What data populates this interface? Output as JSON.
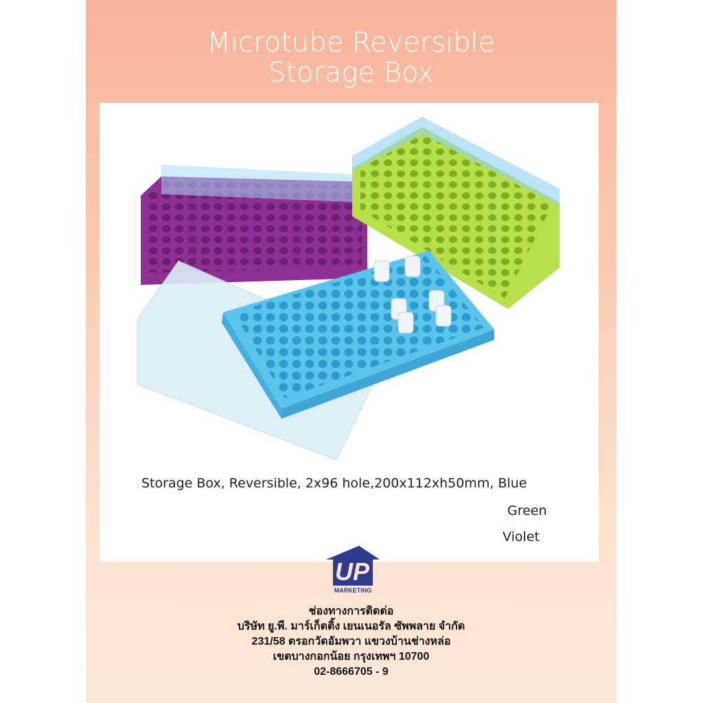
{
  "title_line1": "Microtube Reversible",
  "title_line2": "Storage Box",
  "product": {
    "description": "Storage Box, Reversible, 2x96 hole,200x112xh50mm, Blue",
    "color_green": "Green",
    "color_violet": "Violet",
    "colors": {
      "blue": "#5bc3ec",
      "green": "#b5e04a",
      "violet": "#9b3a9e"
    }
  },
  "logo": {
    "text": "UP",
    "subtext": "MARKETING",
    "color": "#2f3b8c"
  },
  "contact": {
    "heading": "ช่องทางการติดต่อ",
    "company": "บริษัท ยู.พี. มาร์เก็ตติ้ง เยนเนอรัล ซัพพลาย จำกัด",
    "address1": "231/58 ตรอกวัดอัมพวา แขวงบ้านช่างหล่อ",
    "address2": "เขตบางกอกน้อย กรุงเทพฯ 10700",
    "phone": "02-8666705 - 9"
  }
}
